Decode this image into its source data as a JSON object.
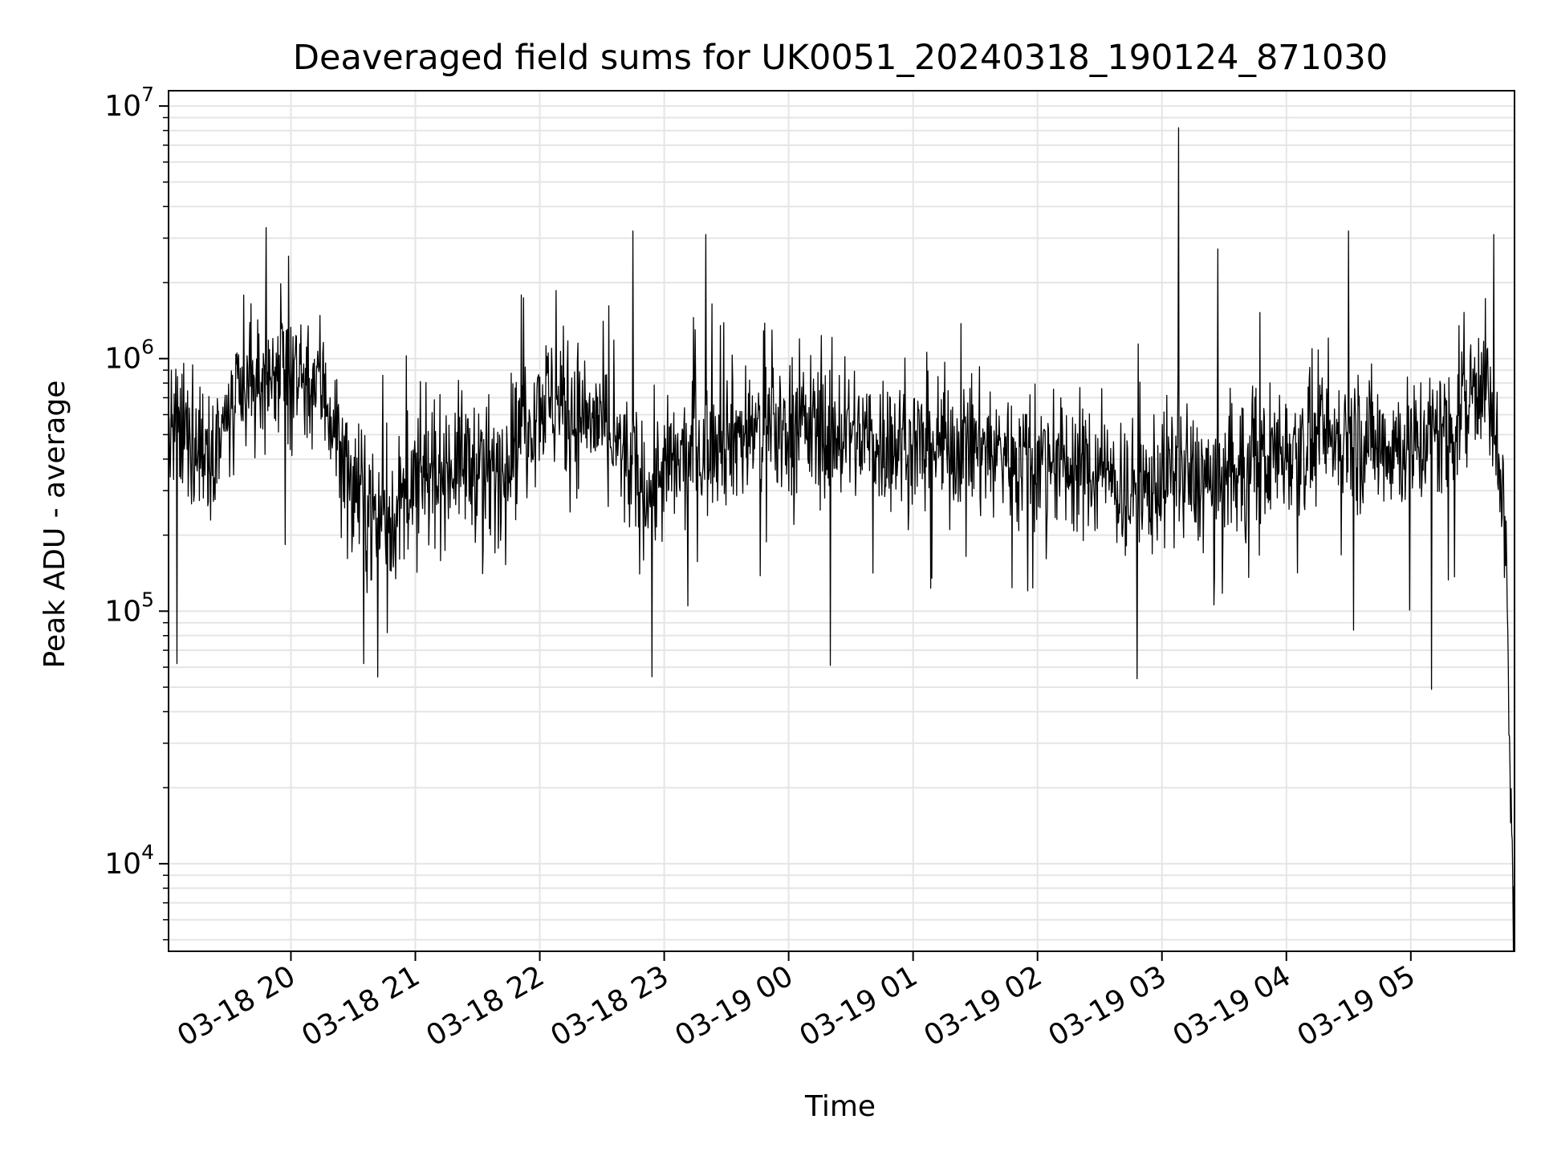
{
  "chart_data": {
    "type": "line",
    "title": "Deaveraged field sums for UK0051_20240318_190124_871030",
    "xlabel": "Time",
    "ylabel": "Peak ADU - average",
    "yscale": "log",
    "grid": true,
    "line_color": "#000000",
    "grid_color": "#e5e5e5",
    "x_ticks": [
      "03-18 20",
      "03-18 21",
      "03-18 22",
      "03-18 23",
      "03-19 00",
      "03-19 01",
      "03-19 02",
      "03-19 03",
      "03-19 04",
      "03-19 05"
    ],
    "x_tick_times": [
      "2024-03-18 20:00",
      "2024-03-18 21:00",
      "2024-03-18 22:00",
      "2024-03-18 23:00",
      "2024-03-19 00:00",
      "2024-03-19 01:00",
      "2024-03-19 02:00",
      "2024-03-19 03:00",
      "2024-03-19 04:00",
      "2024-03-19 05:00"
    ],
    "xlim": [
      "2024-03-18 19:01",
      "2024-03-19 05:50"
    ],
    "y_ticks": [
      {
        "base": "10",
        "exp": "4",
        "value": 10000
      },
      {
        "base": "10",
        "exp": "5",
        "value": 100000
      },
      {
        "base": "10",
        "exp": "6",
        "value": 1000000
      },
      {
        "base": "10",
        "exp": "7",
        "value": 10000000
      }
    ],
    "ylim": [
      4500,
      11500000
    ],
    "series": [
      {
        "x": [
          "2024-03-18 19:01",
          "2024-03-18 19:20",
          "2024-03-18 19:40",
          "2024-03-18 19:50",
          "2024-03-18 20:00",
          "2024-03-18 20:15",
          "2024-03-18 20:30",
          "2024-03-18 20:45",
          "2024-03-18 21:00",
          "2024-03-18 21:20",
          "2024-03-18 21:40",
          "2024-03-18 22:00",
          "2024-03-18 22:30",
          "2024-03-18 22:50",
          "2024-03-18 23:00",
          "2024-03-18 23:30",
          "2024-03-19 00:00",
          "2024-03-19 00:30",
          "2024-03-19 01:00",
          "2024-03-19 01:30",
          "2024-03-19 02:00",
          "2024-03-19 02:30",
          "2024-03-19 02:50",
          "2024-03-19 03:00",
          "2024-03-19 03:30",
          "2024-03-19 04:00",
          "2024-03-19 04:30",
          "2024-03-19 05:00",
          "2024-03-19 05:20",
          "2024-03-19 05:35",
          "2024-03-19 05:45",
          "2024-03-19 05:50"
        ],
        "y": [
          500000,
          450000,
          700000,
          900000,
          900000,
          800000,
          300000,
          220000,
          300000,
          400000,
          350000,
          700000,
          550000,
          300000,
          350000,
          500000,
          550000,
          500000,
          450000,
          450000,
          400000,
          350000,
          280000,
          350000,
          320000,
          450000,
          480000,
          450000,
          550000,
          900000,
          250000,
          6000
        ],
        "peaks": [
          {
            "x": "2024-03-18 19:48",
            "y": 3300000
          },
          {
            "x": "2024-03-18 22:45",
            "y": 3200000
          },
          {
            "x": "2024-03-18 23:20",
            "y": 3100000
          },
          {
            "x": "2024-03-19 03:08",
            "y": 8200000
          },
          {
            "x": "2024-03-19 04:30",
            "y": 3200000
          },
          {
            "x": "2024-03-19 05:40",
            "y": 3100000
          }
        ],
        "troughs": [
          {
            "x": "2024-03-18 19:05",
            "y": 62000
          },
          {
            "x": "2024-03-18 20:35",
            "y": 62000
          },
          {
            "x": "2024-03-18 22:54",
            "y": 55000
          },
          {
            "x": "2024-03-19 00:20",
            "y": 61000
          },
          {
            "x": "2024-03-19 02:48",
            "y": 54000
          },
          {
            "x": "2024-03-19 05:10",
            "y": 49000
          },
          {
            "x": "2024-03-19 05:50",
            "y": 6000
          }
        ]
      }
    ]
  }
}
